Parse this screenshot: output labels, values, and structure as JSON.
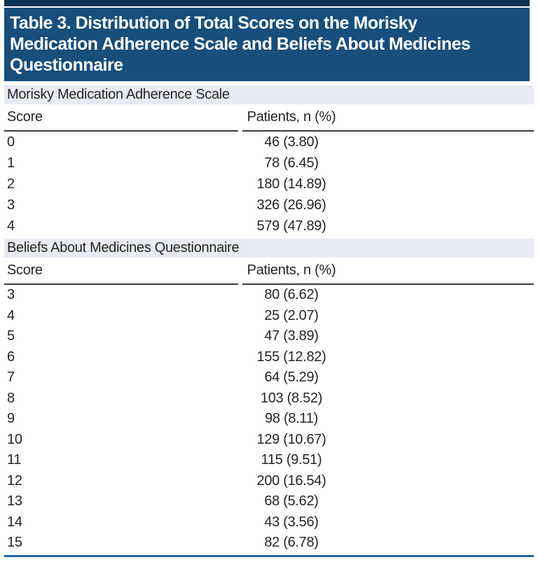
{
  "title": {
    "lines": [
      "Table 3. Distribution of Total Scores on the Morisky",
      "Medication Adherence Scale and Beliefs About Medicines",
      "Questionnaire"
    ],
    "full_text": "Table 3. Distribution of Total Scores on the Morisky Medication Adherence Scale and Beliefs About Medicines Questionnaire"
  },
  "colors": {
    "topbar": "#0E3354",
    "titlebg": "#174E7C",
    "band": "#E8EAF6",
    "rule": "#3B3B3C",
    "bottomrule": "#2065A0",
    "text": "#282425"
  },
  "sections": [
    {
      "heading": "Morisky Medication Adherence Scale",
      "columns": {
        "score": "Score",
        "patients": "Patients, n (%)"
      },
      "rows": [
        {
          "score": "0",
          "patients": "46 (3.80)"
        },
        {
          "score": "1",
          "patients": "78 (6.45)"
        },
        {
          "score": "2",
          "patients": "180 (14.89)"
        },
        {
          "score": "3",
          "patients": "326 (26.96)"
        },
        {
          "score": "4",
          "patients": "579 (47.89)"
        }
      ]
    },
    {
      "heading": "Beliefs About Medicines Questionnaire",
      "columns": {
        "score": "Score",
        "patients": "Patients, n (%)"
      },
      "rows": [
        {
          "score": "3",
          "patients": "80 (6.62)"
        },
        {
          "score": "4",
          "patients": "25 (2.07)"
        },
        {
          "score": "5",
          "patients": "47 (3.89)"
        },
        {
          "score": "6",
          "patients": "155 (12.82)"
        },
        {
          "score": "7",
          "patients": "64 (5.29)"
        },
        {
          "score": "8",
          "patients": "103 (8.52)"
        },
        {
          "score": "9",
          "patients": "98 (8.11)"
        },
        {
          "score": "10",
          "patients": "129 (10.67)"
        },
        {
          "score": "11",
          "patients": "115 (9.51)"
        },
        {
          "score": "12",
          "patients": "200 (16.54)"
        },
        {
          "score": "13",
          "patients": "68 (5.62)"
        },
        {
          "score": "14",
          "patients": "43 (3.56)"
        },
        {
          "score": "15",
          "patients": "82 (6.78)"
        }
      ]
    }
  ]
}
